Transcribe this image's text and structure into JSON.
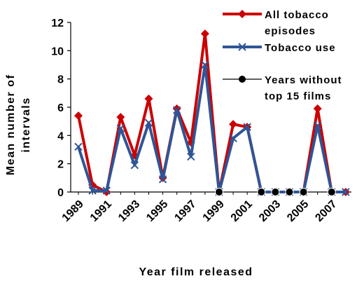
{
  "chart_data": {
    "type": "line",
    "xlabel": "Year film released",
    "ylabel_line1": "Mean number of",
    "ylabel_line2": "intervals",
    "x": [
      1989,
      1990,
      1991,
      1992,
      1993,
      1994,
      1995,
      1996,
      1997,
      1998,
      1999,
      2000,
      2001,
      2002,
      2003,
      2004,
      2005,
      2006,
      2007,
      2008
    ],
    "x_tick_labels": [
      "1989",
      "1991",
      "1993",
      "1995",
      "1997",
      "1999",
      "2001",
      "2003",
      "2005",
      "2007"
    ],
    "y_ticks": [
      "0",
      "2",
      "4",
      "6",
      "8",
      "10",
      "12"
    ],
    "ylim": [
      0,
      12
    ],
    "grid": false,
    "legend_position": "top-right",
    "series": [
      {
        "name": "All tobacco episodes",
        "color": "#cc0000",
        "marker": "diamond",
        "values": [
          5.4,
          0.5,
          0.0,
          5.3,
          2.6,
          6.6,
          1.0,
          5.9,
          3.5,
          11.2,
          0.0,
          4.8,
          4.6,
          0.0,
          0.0,
          0.0,
          0.0,
          5.9,
          0.0,
          0.0
        ]
      },
      {
        "name": "Tobacco use",
        "color": "#2f5597",
        "marker": "x",
        "values": [
          3.2,
          0.1,
          0.1,
          4.5,
          1.9,
          4.9,
          0.9,
          5.8,
          2.5,
          9.0,
          0.0,
          3.8,
          4.6,
          0.0,
          0.0,
          0.0,
          0.0,
          4.7,
          0.0,
          0.0
        ]
      }
    ],
    "missing_years": {
      "name": "Years without top 15 films",
      "name_line1": "Years without",
      "name_line2": "top 15 films",
      "color": "#000000",
      "marker": "circle",
      "x": [
        1999,
        2002,
        2003,
        2004,
        2005,
        2007
      ]
    },
    "legend": {
      "all_line1": "All tobacco",
      "all_line2": "episodes",
      "use": "Tobacco use"
    }
  }
}
